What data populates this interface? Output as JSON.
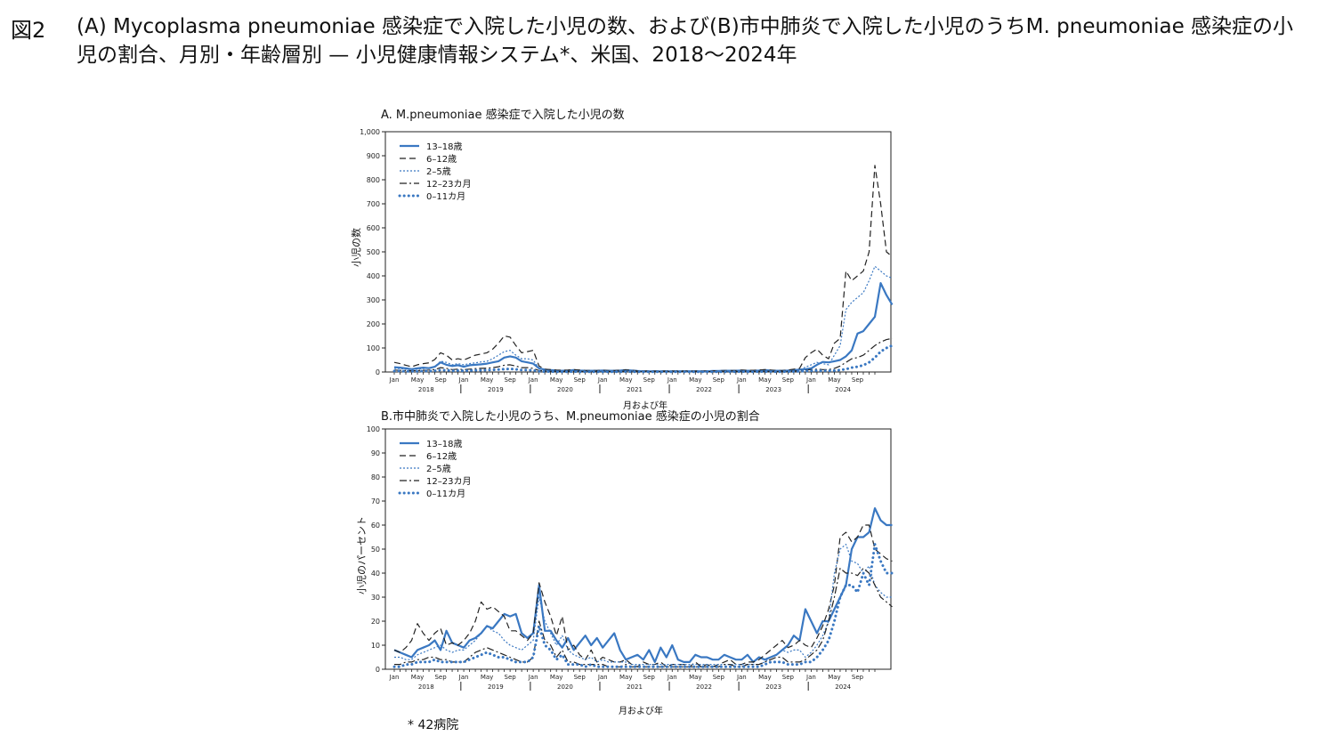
{
  "figure_label": "図2",
  "figure_title": "(A) Mycoplasma pneumoniae 感染症で入院した小児の数、および(B)市中肺炎で入院した小児のうちM. pneumoniae 感染症の小児の割合、月別・年齢層別 — 小児健康情報システム*、米国、2018〜2024年",
  "footnote": "* 42病院",
  "colors": {
    "blue": "#3a78c2",
    "black": "#222222"
  },
  "chart_data": [
    {
      "type": "line",
      "title": "A. M.pneumoniae 感染症で入院した小児の数",
      "xlabel": "月および年",
      "ylabel": "小児の数",
      "ylim": [
        0,
        1000
      ],
      "yticks": [
        "0",
        "100",
        "200",
        "300",
        "400",
        "500",
        "600",
        "700",
        "800",
        "900",
        "1,000"
      ],
      "month_ticks": [
        "Jan",
        "May",
        "Sep"
      ],
      "years": [
        "2018",
        "2019",
        "2020",
        "2021",
        "2022",
        "2023",
        "2024"
      ],
      "legend": "top-left",
      "series": [
        {
          "name": "13–18歳",
          "style": "solid-blue",
          "values": [
            20,
            18,
            15,
            12,
            15,
            18,
            16,
            22,
            40,
            30,
            25,
            28,
            22,
            28,
            30,
            32,
            35,
            40,
            45,
            60,
            65,
            60,
            45,
            40,
            35,
            15,
            10,
            8,
            6,
            5,
            6,
            8,
            6,
            5,
            5,
            5,
            6,
            5,
            5,
            6,
            8,
            6,
            4,
            3,
            3,
            3,
            3,
            3,
            3,
            3,
            3,
            3,
            3,
            3,
            3,
            4,
            4,
            5,
            5,
            5,
            6,
            5,
            5,
            6,
            8,
            6,
            5,
            5,
            6,
            8,
            10,
            12,
            15,
            30,
            42,
            40,
            45,
            50,
            65,
            90,
            160,
            170,
            200,
            230,
            370,
            320,
            280
          ]
        },
        {
          "name": "6–12歳",
          "style": "dash-black",
          "values": [
            40,
            35,
            28,
            22,
            30,
            35,
            38,
            52,
            80,
            70,
            50,
            55,
            50,
            60,
            70,
            75,
            80,
            95,
            120,
            150,
            145,
            110,
            80,
            85,
            90,
            25,
            12,
            10,
            8,
            7,
            8,
            10,
            8,
            6,
            6,
            6,
            7,
            6,
            6,
            7,
            9,
            7,
            5,
            4,
            4,
            4,
            4,
            4,
            4,
            4,
            4,
            4,
            4,
            4,
            4,
            5,
            5,
            6,
            6,
            6,
            8,
            7,
            7,
            8,
            10,
            8,
            6,
            6,
            8,
            12,
            15,
            60,
            80,
            95,
            70,
            55,
            120,
            140,
            420,
            380,
            400,
            420,
            500,
            860,
            700,
            500,
            480
          ]
        },
        {
          "name": "2–5歳",
          "style": "dot-blue",
          "values": [
            15,
            14,
            12,
            10,
            12,
            14,
            16,
            22,
            45,
            40,
            30,
            35,
            30,
            35,
            38,
            42,
            45,
            55,
            70,
            85,
            90,
            70,
            55,
            55,
            50,
            15,
            8,
            6,
            5,
            4,
            5,
            6,
            5,
            4,
            4,
            4,
            5,
            4,
            4,
            5,
            6,
            5,
            3,
            2,
            2,
            2,
            2,
            2,
            2,
            2,
            2,
            2,
            2,
            2,
            2,
            3,
            3,
            4,
            4,
            4,
            5,
            4,
            4,
            5,
            6,
            5,
            4,
            4,
            5,
            7,
            8,
            20,
            30,
            40,
            35,
            30,
            70,
            110,
            260,
            290,
            310,
            330,
            380,
            440,
            420,
            400,
            390
          ]
        },
        {
          "name": "12–23カ月",
          "style": "dashdot-black",
          "values": [
            8,
            7,
            6,
            5,
            6,
            7,
            8,
            10,
            18,
            15,
            10,
            12,
            10,
            12,
            14,
            15,
            16,
            18,
            22,
            28,
            30,
            25,
            18,
            18,
            15,
            6,
            4,
            3,
            3,
            2,
            3,
            3,
            3,
            2,
            2,
            2,
            3,
            2,
            2,
            3,
            3,
            3,
            2,
            1,
            1,
            1,
            1,
            1,
            1,
            1,
            1,
            1,
            1,
            1,
            1,
            2,
            2,
            2,
            2,
            2,
            3,
            2,
            2,
            3,
            3,
            3,
            2,
            2,
            3,
            4,
            5,
            8,
            10,
            12,
            10,
            10,
            15,
            25,
            40,
            55,
            60,
            70,
            90,
            110,
            125,
            135,
            140
          ]
        },
        {
          "name": "0–11カ月",
          "style": "bigdot-blue",
          "values": [
            4,
            4,
            3,
            3,
            3,
            4,
            4,
            5,
            8,
            7,
            5,
            6,
            5,
            6,
            7,
            7,
            8,
            9,
            10,
            12,
            13,
            11,
            8,
            8,
            7,
            3,
            2,
            2,
            1,
            1,
            1,
            2,
            1,
            1,
            1,
            1,
            1,
            1,
            1,
            1,
            2,
            1,
            1,
            1,
            1,
            1,
            1,
            1,
            1,
            1,
            1,
            1,
            1,
            1,
            1,
            1,
            1,
            1,
            1,
            1,
            2,
            1,
            1,
            2,
            2,
            2,
            1,
            1,
            2,
            2,
            3,
            4,
            5,
            6,
            5,
            5,
            6,
            8,
            12,
            18,
            22,
            28,
            40,
            60,
            85,
            100,
            110
          ]
        }
      ]
    },
    {
      "type": "line",
      "title": "B.市中肺炎で入院した小児のうち、M.pneumoniae 感染症の小児の割合",
      "xlabel": "月および年",
      "ylabel": "小児のパーセント",
      "ylim": [
        0,
        100
      ],
      "yticks": [
        "0",
        "10",
        "20",
        "30",
        "40",
        "50",
        "60",
        "70",
        "80",
        "90",
        "100"
      ],
      "month_ticks": [
        "Jan",
        "May",
        "Sep"
      ],
      "years": [
        "2018",
        "2019",
        "2020",
        "2021",
        "2022",
        "2023",
        "2024"
      ],
      "legend": "top-left",
      "series": [
        {
          "name": "13–18歳",
          "style": "solid-blue",
          "values": [
            8,
            7,
            6,
            5,
            8,
            9,
            10,
            12,
            8,
            16,
            11,
            10,
            9,
            12,
            13,
            15,
            18,
            17,
            20,
            23,
            22,
            23,
            15,
            13,
            15,
            35,
            16,
            16,
            12,
            9,
            13,
            8,
            11,
            14,
            10,
            13,
            9,
            12,
            15,
            8,
            4,
            5,
            6,
            4,
            8,
            3,
            9,
            5,
            10,
            4,
            3,
            3,
            6,
            5,
            5,
            4,
            4,
            6,
            5,
            4,
            4,
            6,
            3,
            5,
            4,
            5,
            6,
            8,
            10,
            14,
            12,
            25,
            20,
            15,
            20,
            20,
            25,
            30,
            35,
            50,
            55,
            55,
            57,
            67,
            62,
            60,
            60
          ]
        },
        {
          "name": "6–12歳",
          "style": "dash-black",
          "values": [
            8,
            7,
            9,
            12,
            19,
            15,
            12,
            15,
            17,
            10,
            11,
            10,
            12,
            15,
            20,
            28,
            25,
            26,
            24,
            22,
            16,
            16,
            14,
            12,
            15,
            36,
            28,
            22,
            14,
            22,
            8,
            10,
            6,
            4,
            8,
            3,
            5,
            4,
            3,
            3,
            4,
            2,
            1,
            3,
            2,
            2,
            3,
            1,
            2,
            2,
            2,
            1,
            3,
            1,
            2,
            1,
            2,
            3,
            4,
            2,
            2,
            3,
            3,
            4,
            6,
            8,
            10,
            12,
            9,
            10,
            12,
            10,
            9,
            13,
            18,
            25,
            35,
            55,
            57,
            53,
            55,
            60,
            60,
            50,
            48,
            46,
            45
          ]
        },
        {
          "name": "2–5歳",
          "style": "dot-blue",
          "values": [
            5,
            5,
            4,
            4,
            6,
            7,
            8,
            9,
            10,
            8,
            7,
            8,
            8,
            10,
            12,
            15,
            18,
            16,
            15,
            12,
            10,
            9,
            8,
            10,
            12,
            30,
            20,
            15,
            10,
            14,
            8,
            6,
            5,
            4,
            5,
            3,
            4,
            3,
            3,
            3,
            3,
            2,
            2,
            2,
            2,
            2,
            2,
            2,
            2,
            2,
            2,
            2,
            2,
            2,
            2,
            2,
            2,
            2,
            2,
            2,
            2,
            2,
            2,
            2,
            3,
            5,
            6,
            8,
            7,
            8,
            8,
            5,
            7,
            10,
            14,
            20,
            40,
            50,
            52,
            45,
            44,
            40,
            43,
            35,
            32,
            30,
            30
          ]
        },
        {
          "name": "12–23カ月",
          "style": "dashdot-black",
          "values": [
            2,
            2,
            3,
            3,
            4,
            4,
            5,
            5,
            4,
            4,
            3,
            3,
            3,
            5,
            7,
            8,
            9,
            8,
            7,
            6,
            5,
            4,
            3,
            3,
            5,
            20,
            12,
            10,
            5,
            8,
            3,
            3,
            2,
            2,
            2,
            2,
            2,
            1,
            1,
            1,
            2,
            1,
            1,
            1,
            1,
            1,
            1,
            1,
            1,
            1,
            1,
            1,
            1,
            1,
            1,
            1,
            1,
            2,
            2,
            1,
            1,
            2,
            2,
            2,
            3,
            4,
            5,
            5,
            3,
            3,
            3,
            4,
            6,
            8,
            12,
            20,
            30,
            42,
            40,
            40,
            39,
            42,
            40,
            35,
            30,
            28,
            26
          ]
        },
        {
          "name": "0–11カ月",
          "style": "bigdot-blue",
          "values": [
            1,
            1,
            2,
            2,
            3,
            3,
            3,
            4,
            3,
            3,
            3,
            3,
            3,
            4,
            5,
            6,
            7,
            6,
            5,
            5,
            4,
            3,
            3,
            3,
            5,
            18,
            10,
            8,
            4,
            6,
            2,
            2,
            2,
            1,
            2,
            1,
            1,
            1,
            1,
            1,
            1,
            1,
            1,
            1,
            1,
            1,
            1,
            1,
            1,
            1,
            1,
            1,
            1,
            1,
            1,
            1,
            1,
            1,
            1,
            1,
            1,
            1,
            1,
            1,
            2,
            3,
            3,
            3,
            2,
            2,
            2,
            3,
            3,
            5,
            8,
            12,
            20,
            30,
            35,
            35,
            32,
            40,
            35,
            52,
            45,
            40,
            40
          ]
        }
      ]
    }
  ]
}
